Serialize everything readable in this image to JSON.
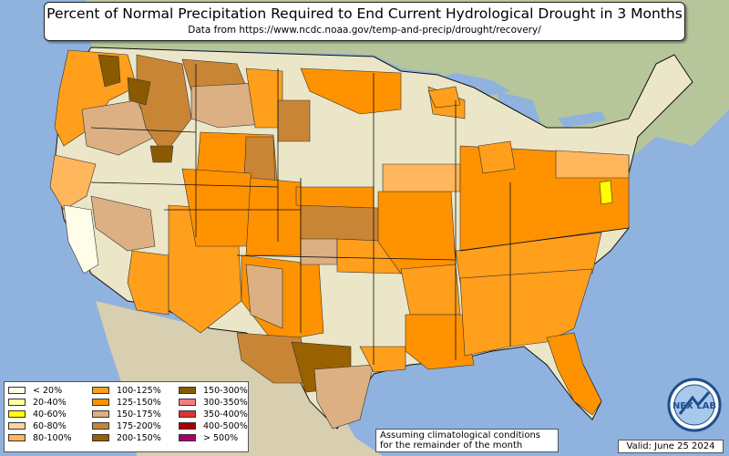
{
  "header": {
    "title": "Percent of Normal Precipitation Required to End Current Hydrological Drought in 3 Months",
    "subtitle": "Data from https://www.ncdc.noaa.gov/temp-and-precip/drought/recovery/"
  },
  "legend": {
    "columns": [
      [
        {
          "label": "< 20%",
          "color": "#fffde8"
        },
        {
          "label": "20-40%",
          "color": "#ffffa0"
        },
        {
          "label": "40-60%",
          "color": "#ffff00"
        },
        {
          "label": "60-80%",
          "color": "#ffd59a"
        },
        {
          "label": "80-100%",
          "color": "#ffb65c"
        }
      ],
      [
        {
          "label": "100-125%",
          "color": "#ff9f1c"
        },
        {
          "label": "125-150%",
          "color": "#ff9200"
        },
        {
          "label": "150-175%",
          "color": "#dcb082"
        },
        {
          "label": "175-200%",
          "color": "#c98536"
        },
        {
          "label": "200-150%",
          "color": "#996100"
        }
      ],
      [
        {
          "label": "150-300%",
          "color": "#8a5a00"
        },
        {
          "label": "300-350%",
          "color": "#f08080"
        },
        {
          "label": "350-400%",
          "color": "#dd3333"
        },
        {
          "label": "400-500%",
          "color": "#aa0000"
        },
        {
          "label": "> 500%",
          "color": "#aa0066"
        }
      ]
    ]
  },
  "note": {
    "line1": "Assuming climatological conditions",
    "line2": "for the remainder of the month"
  },
  "valid": "Valid: June 25 2024",
  "logo": {
    "text": "NEX LAB"
  },
  "colors": {
    "water": "#8fb2de",
    "land": "#ece6c8",
    "mountains": "#c9c0a0",
    "state_border": "#111111",
    "county_border": "#555555"
  }
}
